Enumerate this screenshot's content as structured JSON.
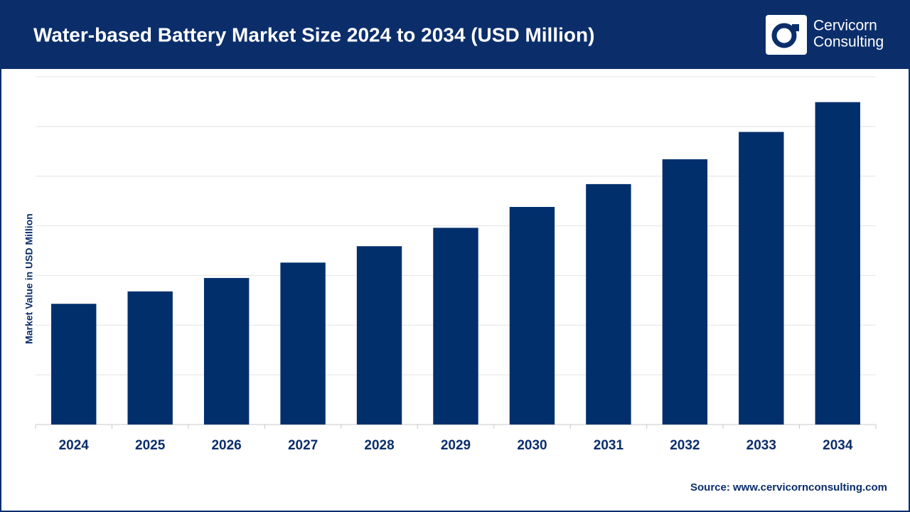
{
  "chart_data": {
    "type": "bar",
    "title": "Water-based Battery Market Size 2024 to 2034 (USD Million)",
    "y_label": "Market Value in USD Million",
    "categories": [
      "2024",
      "2025",
      "2026",
      "2027",
      "2028",
      "2029",
      "2030",
      "2031",
      "2032",
      "2033",
      "2034"
    ],
    "values": [
      2.43,
      2.68,
      2.95,
      3.26,
      3.59,
      3.96,
      4.38,
      4.84,
      5.34,
      5.89,
      6.49
    ],
    "color": "#002f6c",
    "ylim": [
      0,
      7
    ],
    "yticks": [
      0,
      1,
      2,
      3,
      4,
      5,
      6,
      7
    ],
    "grid": true,
    "source": "Source: www.cervicornconsulting.com"
  },
  "brand": {
    "line1": "Cervicorn",
    "line2": "Consulting"
  }
}
